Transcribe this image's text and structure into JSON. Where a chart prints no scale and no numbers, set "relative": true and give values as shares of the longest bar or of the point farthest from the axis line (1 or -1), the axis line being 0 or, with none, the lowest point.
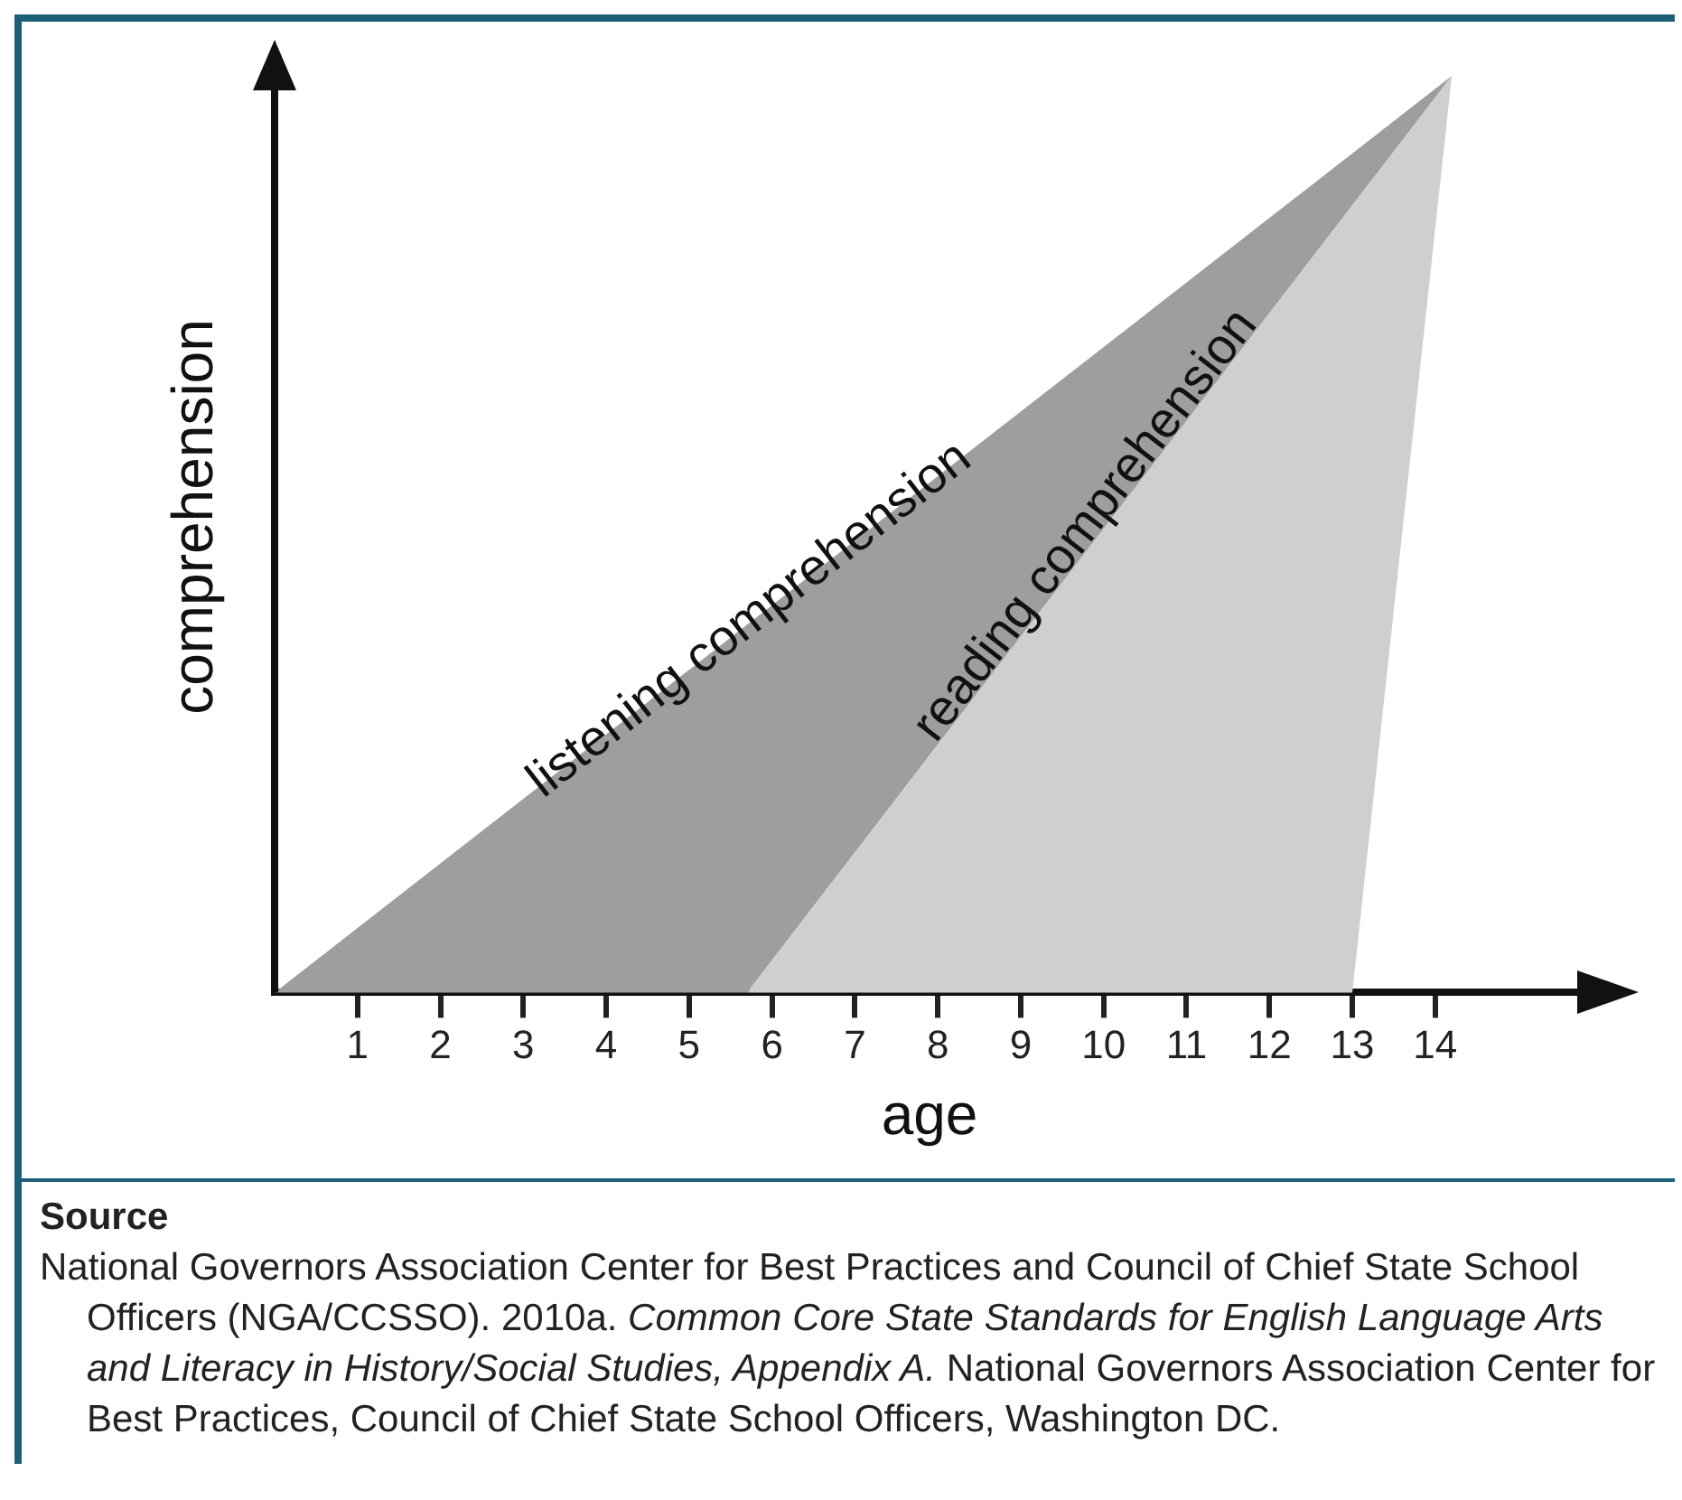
{
  "chart_data": {
    "type": "area",
    "relative": true,
    "xlabel": "age",
    "ylabel": "comprehension",
    "xlim": [
      0,
      15.8
    ],
    "xticks": [
      1,
      2,
      3,
      4,
      5,
      6,
      7,
      8,
      9,
      10,
      11,
      12,
      13,
      14
    ],
    "series": [
      {
        "name": "listening comprehension",
        "color": "#9e9e9e",
        "x": [
          0,
          14.2,
          5.7
        ],
        "values": [
          0,
          1,
          0
        ]
      },
      {
        "name": "reading comprehension",
        "color": "#cfcfcf",
        "x": [
          5.7,
          14.2,
          13
        ],
        "values": [
          0,
          1,
          0
        ]
      }
    ],
    "legend": false,
    "grid": false,
    "annotations": [
      "Source",
      "National Governors Association Center for Best Practices and Council of Chief State School Officers (NGA/CCSSO). 2010a.",
      "Common Core State Standards for English Language Arts and Literacy in History/Social Studies, Appendix A.",
      "National Governors Association Center for Best Practices, Council of Chief State School Officers, Washington DC."
    ]
  }
}
